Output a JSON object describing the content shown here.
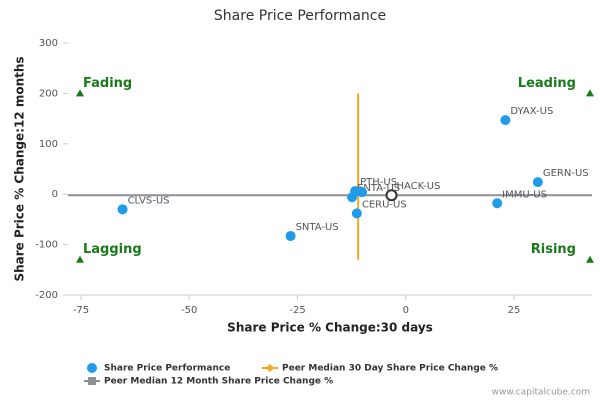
{
  "chart_data": {
    "type": "scatter",
    "title": "Share Price Performance",
    "x_label": "Share Price % Change:30 days",
    "y_label": "Share Price % Change:12 months",
    "xlim": [
      -78,
      43
    ],
    "xticks": [
      -75,
      -50,
      -25,
      0,
      25
    ],
    "ylim": [
      -200,
      300
    ],
    "yticks": [
      -200,
      -100,
      0,
      100,
      200,
      300
    ],
    "series": [
      {
        "name": "Share Price Performance",
        "color": "#1e9be9",
        "x": [
          -65.4,
          -26.6,
          23,
          30.5,
          21.1,
          -11.3,
          -12.4,
          -11.7,
          -10.1,
          -3.3
        ],
        "values": [
          -30,
          -83,
          147,
          24,
          -18,
          -38,
          -6,
          6,
          4,
          -2
        ],
        "labels": [
          "CLVS-US",
          "SNTA-US",
          "DYAX-US",
          "GERN-US",
          "IMMU-US",
          "CERU-US",
          "ENTA-US",
          "PTH-US",
          null,
          "HACK-US"
        ],
        "highlight": 9
      },
      {
        "name": "Peer Median 30 Day Share Price Change %",
        "color": "#f5a623",
        "x": [
          -11,
          -11
        ],
        "values": [
          -130,
          200
        ]
      },
      {
        "name": "Peer Median 12 Month Share Price Change %",
        "color": "#8c9199",
        "x": [
          -78,
          43
        ],
        "values": [
          -2,
          -2
        ]
      }
    ],
    "quadrants": [
      {
        "label": "Fading",
        "position": "top-left"
      },
      {
        "label": "Leading",
        "position": "top-right"
      },
      {
        "label": "Lagging",
        "position": "bottom-left"
      },
      {
        "label": "Rising",
        "position": "bottom-right"
      }
    ],
    "quadrant_color": "#1a7a1a",
    "source": "www.capitalcube.com"
  }
}
